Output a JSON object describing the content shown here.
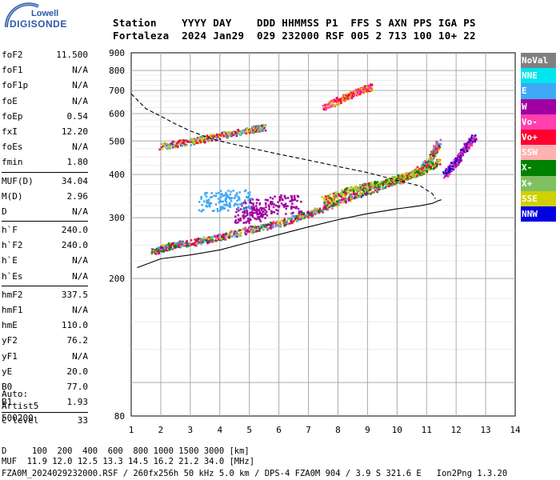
{
  "logo": {
    "line1": "Lowell",
    "line2": "DIGISONDE"
  },
  "header": {
    "line1": "Station    YYYY DAY    DDD HHMMSS P1  FFS S AXN PPS IGA PS",
    "line2": "Fortaleza  2024 Jan29  029 232000 RSF 005 2 713 100 10+ 22"
  },
  "params": [
    {
      "name": "foF2",
      "value": "11.500"
    },
    {
      "name": "foF1",
      "value": "N/A"
    },
    {
      "name": "foF1p",
      "value": "N/A"
    },
    {
      "name": "foE",
      "value": "N/A"
    },
    {
      "name": "foEp",
      "value": "0.54"
    },
    {
      "name": "fxI",
      "value": "12.20"
    },
    {
      "name": "foEs",
      "value": "N/A"
    },
    {
      "name": "fmin",
      "value": "1.80"
    },
    {
      "name": "MUF(D)",
      "value": "34.04"
    },
    {
      "name": "M(D)",
      "value": "2.96"
    },
    {
      "name": "D",
      "value": "N/A"
    },
    {
      "name": "h`F",
      "value": "240.0"
    },
    {
      "name": "h`F2",
      "value": "240.0"
    },
    {
      "name": "h`E",
      "value": "N/A"
    },
    {
      "name": "h`Es",
      "value": "N/A"
    },
    {
      "name": "hmF2",
      "value": "337.5"
    },
    {
      "name": "hmF1",
      "value": "N/A"
    },
    {
      "name": "hmE",
      "value": "110.0"
    },
    {
      "name": "yF2",
      "value": "76.2"
    },
    {
      "name": "yF1",
      "value": "N/A"
    },
    {
      "name": "yE",
      "value": "20.0"
    },
    {
      "name": "B0",
      "value": "77.0"
    },
    {
      "name": "B1",
      "value": "1.93"
    },
    {
      "name": "C-level",
      "value": "33"
    }
  ],
  "autoscaler": {
    "line1": "Auto:",
    "line2": "Artist5",
    "line3": "500200"
  },
  "legend": [
    {
      "label": "NoVal",
      "color": "#808080"
    },
    {
      "label": "NNE",
      "color": "#00e5ee"
    },
    {
      "label": "E",
      "color": "#3fa9f5"
    },
    {
      "label": "W",
      "color": "#a000a0"
    },
    {
      "label": "Vo-",
      "color": "#ff40b0"
    },
    {
      "label": "Vo+",
      "color": "#ff0030"
    },
    {
      "label": "SSW",
      "color": "#ffb0b0"
    },
    {
      "label": "X-",
      "color": "#008000"
    },
    {
      "label": "X+",
      "color": "#80c060"
    },
    {
      "label": "SSE",
      "color": "#d0d000"
    },
    {
      "label": "NNW",
      "color": "#0000e0"
    }
  ],
  "footer": {
    "line1": "D     100  200  400  600  800 1000 1500 3000 [km]",
    "line2": "MUF  11.9 12.0 12.5 13.3 14.5 16.2 21.2 34.0 [MHz]",
    "line3": "FZA0M_2024029232000.RSF / 260fx256h 50 kHz 5.0 km / DPS-4 FZA0M 904 / 3.9 S 321.6 E   Ion2Png 1.3.20"
  },
  "chart_data": {
    "type": "scatter",
    "xlim": [
      1,
      14
    ],
    "ylim": [
      80,
      900
    ],
    "x_ticks": [
      "1",
      "2",
      "3",
      "4",
      "5",
      "6",
      "7",
      "8",
      "9",
      "10",
      "11",
      "12",
      "13",
      "14"
    ],
    "y_ticks": [
      "80",
      "200",
      "300",
      "400",
      "500",
      "600",
      "700",
      "800",
      "900"
    ],
    "y_scale": "log",
    "grid": true,
    "echo_traces": [
      {
        "name": "o-trace",
        "x": [
          1.7,
          2.2,
          3.0,
          4.0,
          5.0,
          6.0,
          7.0,
          8.0,
          9.0,
          10.0,
          10.6,
          11.1,
          11.4
        ],
        "y": [
          240,
          248,
          255,
          265,
          278,
          290,
          308,
          335,
          360,
          385,
          405,
          440,
          500
        ]
      },
      {
        "name": "second-hop",
        "x": [
          2.0,
          3.0,
          4.0,
          5.0,
          5.5
        ],
        "y": [
          485,
          500,
          520,
          540,
          550
        ]
      },
      {
        "name": "high-band",
        "x": [
          7.5,
          8.2,
          8.7,
          9.1
        ],
        "y": [
          630,
          670,
          700,
          720
        ]
      },
      {
        "name": "x-trace",
        "x": [
          7.5,
          8.5,
          9.5,
          10.2,
          10.8,
          11.4
        ],
        "y": [
          340,
          365,
          380,
          395,
          410,
          440
        ]
      },
      {
        "name": "fxI-spur",
        "x": [
          11.6,
          12.0,
          12.3,
          12.6
        ],
        "y": [
          400,
          440,
          480,
          520
        ]
      }
    ],
    "profile_solid": {
      "x": [
        1.2,
        2,
        3,
        4,
        5,
        6,
        7,
        8,
        9,
        10,
        10.8,
        11.2,
        11.4,
        11.5
      ],
      "y": [
        215,
        228,
        234,
        242,
        255,
        268,
        282,
        296,
        308,
        318,
        325,
        330,
        336,
        338
      ]
    },
    "profile_dashed": {
      "x": [
        1,
        1.5,
        2,
        2.5,
        3,
        3.5,
        4,
        5,
        6,
        7,
        8,
        9,
        10,
        10.8,
        11.2,
        11.3
      ],
      "y": [
        685,
        620,
        590,
        560,
        535,
        515,
        500,
        478,
        458,
        440,
        422,
        405,
        385,
        370,
        352,
        340
      ]
    }
  }
}
